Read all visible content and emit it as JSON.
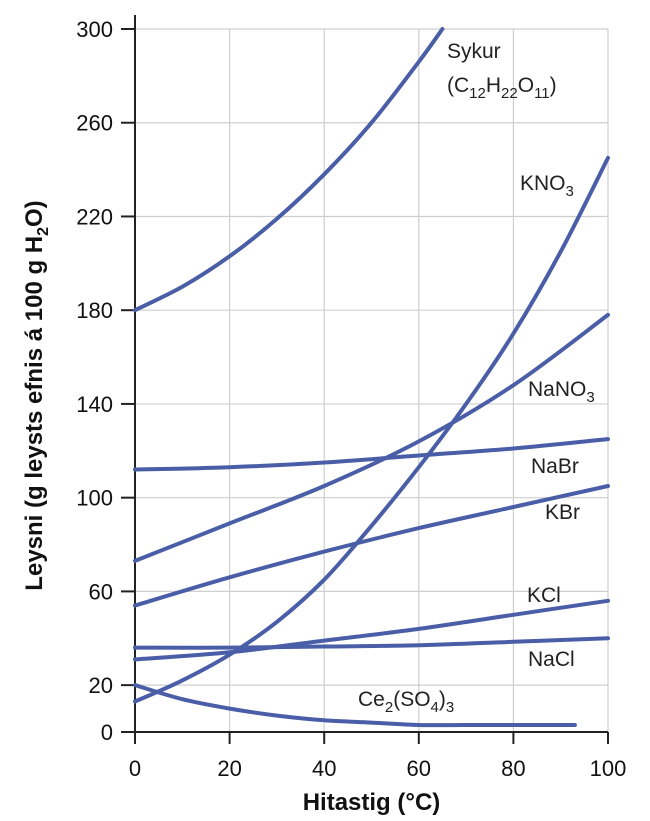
{
  "chart_data": {
    "type": "line",
    "xlabel": "Hitastig (°C)",
    "ylabel": "Leysni (g leysts efnis á 100 g H₂O)",
    "xlim": [
      0,
      100
    ],
    "ylim": [
      0,
      300
    ],
    "xticks": [
      0,
      20,
      40,
      60,
      80,
      100
    ],
    "yticks": [
      0,
      20,
      60,
      100,
      140,
      180,
      220,
      260,
      300
    ],
    "grid": true,
    "line_color": "#4a5ea8",
    "series": [
      {
        "name": "Sykur (C12H22O11)",
        "label_main": "Sykur",
        "label_sub": "(C",
        "label_formula": [
          [
            "(C",
            ""
          ],
          [
            "12",
            "sub"
          ],
          [
            "H",
            ""
          ],
          [
            "22",
            "sub"
          ],
          [
            "O",
            ""
          ],
          [
            "11",
            "sub"
          ],
          [
            ")",
            ""
          ]
        ],
        "x": [
          0,
          10,
          20,
          30,
          40,
          50,
          60,
          65
        ],
        "y": [
          180,
          190,
          203,
          219,
          238,
          260,
          286,
          300
        ]
      },
      {
        "name": "KNO3",
        "label_formula": [
          [
            "KNO",
            ""
          ],
          [
            "3",
            "sub"
          ]
        ],
        "x": [
          0,
          10,
          20,
          30,
          40,
          50,
          60,
          70,
          80,
          90,
          100
        ],
        "y": [
          13,
          22,
          33,
          47,
          65,
          88,
          113,
          140,
          170,
          205,
          245
        ]
      },
      {
        "name": "NaNO3",
        "label_formula": [
          [
            "NaNO",
            ""
          ],
          [
            "3",
            "sub"
          ]
        ],
        "x": [
          0,
          20,
          40,
          60,
          80,
          100
        ],
        "y": [
          73,
          89,
          105,
          124,
          148,
          178
        ]
      },
      {
        "name": "NaBr",
        "label_formula": [
          [
            "NaBr",
            ""
          ]
        ],
        "x": [
          0,
          20,
          40,
          60,
          80,
          100
        ],
        "y": [
          112,
          113,
          115,
          118,
          121,
          125
        ]
      },
      {
        "name": "KBr",
        "label_formula": [
          [
            "KBr",
            ""
          ]
        ],
        "x": [
          0,
          20,
          40,
          60,
          80,
          100
        ],
        "y": [
          54,
          66,
          77,
          87,
          96,
          105
        ]
      },
      {
        "name": "KCl",
        "label_formula": [
          [
            "KCl",
            ""
          ]
        ],
        "x": [
          0,
          20,
          40,
          60,
          80,
          100
        ],
        "y": [
          31,
          34,
          39,
          44,
          50,
          56
        ]
      },
      {
        "name": "NaCl",
        "label_formula": [
          [
            "NaCl",
            ""
          ]
        ],
        "x": [
          0,
          20,
          40,
          60,
          80,
          100
        ],
        "y": [
          36,
          36,
          36.5,
          37,
          38.5,
          40
        ]
      },
      {
        "name": "Ce2(SO4)3",
        "label_formula": [
          [
            "Ce",
            ""
          ],
          [
            "2",
            "sub"
          ],
          [
            "(SO",
            ""
          ],
          [
            "4",
            "sub"
          ],
          [
            ")",
            ""
          ],
          [
            "3",
            "sub"
          ]
        ],
        "x": [
          0,
          10,
          20,
          30,
          40,
          50,
          60,
          70,
          80,
          93
        ],
        "y": [
          20,
          14,
          10,
          7,
          5,
          4,
          3,
          3,
          3,
          3
        ]
      }
    ]
  }
}
